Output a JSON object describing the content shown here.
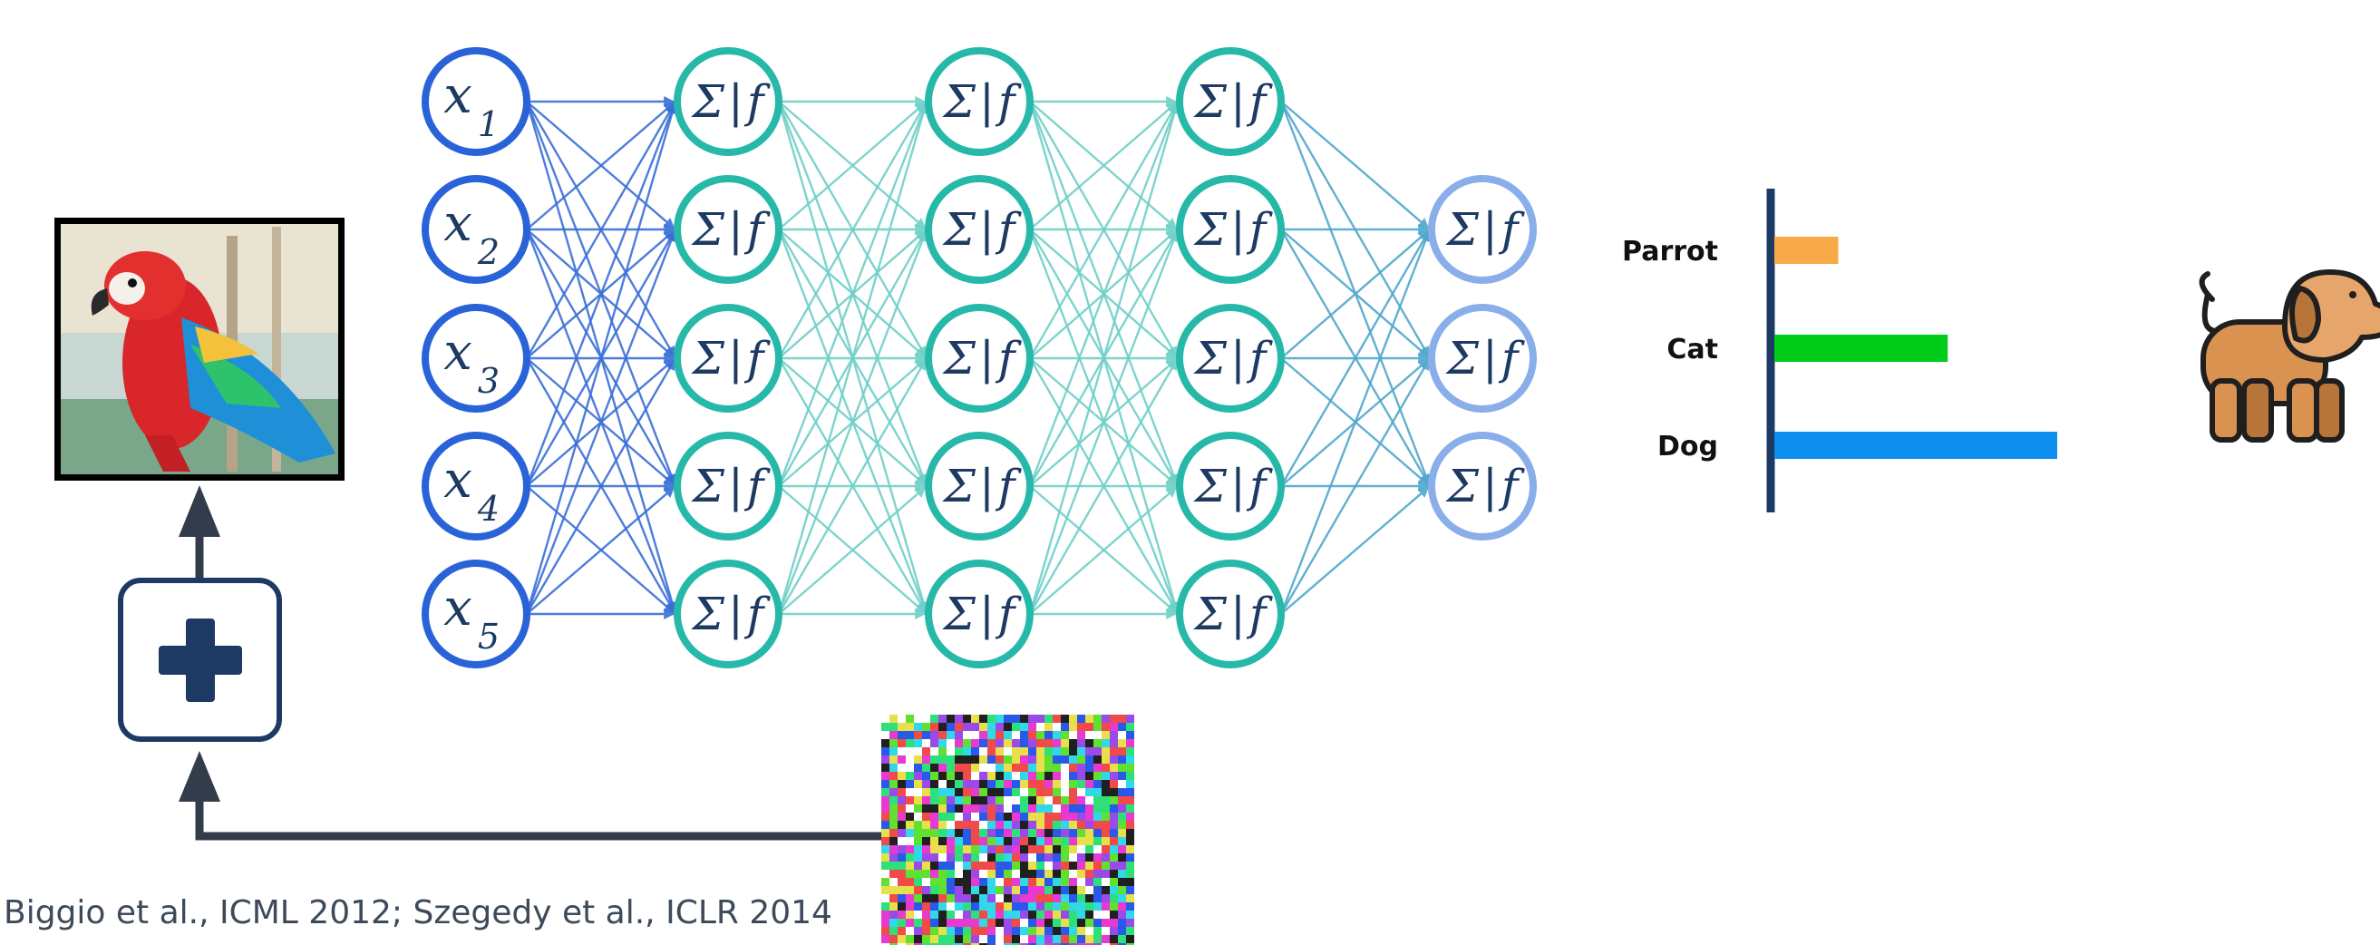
{
  "network": {
    "input_nodes": [
      {
        "var": "x",
        "sub": "1"
      },
      {
        "var": "x",
        "sub": "2"
      },
      {
        "var": "x",
        "sub": "3"
      },
      {
        "var": "x",
        "sub": "4"
      },
      {
        "var": "x",
        "sub": "5"
      }
    ],
    "neuron_label": {
      "sigma": "Σ",
      "bar": "|",
      "f": "f"
    },
    "hidden_layers": 3,
    "hidden_layer_size": 5,
    "output_layer_size": 3,
    "colors": {
      "input": "#2a63d8",
      "hidden": "#26b8a8",
      "output": "#8aaeea",
      "edge_input": "#3a6fd8",
      "edge_hidden": "#6fd0c8",
      "edge_output": "#4fa8cc"
    }
  },
  "chart_data": {
    "type": "bar",
    "orientation": "horizontal",
    "categories": [
      "Parrot",
      "Cat",
      "Dog"
    ],
    "values": [
      0.07,
      0.19,
      0.31
    ],
    "colors": [
      "#f8aa48",
      "#00cc1a",
      "#0e8fee"
    ],
    "xlim": [
      0,
      0.34
    ]
  },
  "operator": {
    "symbol": "plus-icon"
  },
  "citation": "Biggio et al., ICML 2012; Szegedy et al., ICLR 2014",
  "icons": {
    "input_image": "parrot-image",
    "noise": "adversarial-noise-image",
    "prediction": "dog-icon"
  }
}
